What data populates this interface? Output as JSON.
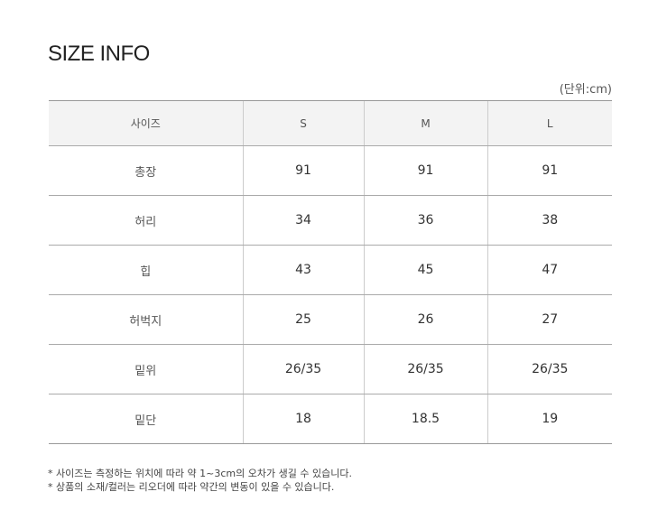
{
  "title": "SIZE INFO",
  "unit": "(단위:cm)",
  "table": {
    "headers": [
      "사이즈",
      "S",
      "M",
      "L"
    ],
    "rows": [
      [
        "총장",
        "91",
        "91",
        "91"
      ],
      [
        "허리",
        "34",
        "36",
        "38"
      ],
      [
        "힙",
        "43",
        "45",
        "47"
      ],
      [
        "허벅지",
        "25",
        "26",
        "27"
      ],
      [
        "밑위",
        "26/35",
        "26/35",
        "26/35"
      ],
      [
        "밑단",
        "18",
        "18.5",
        "19"
      ]
    ]
  },
  "notes": [
    "* 사이즈는 측정하는 위치에 따라 약 1~3cm의 오차가 생길 수 있습니다.",
    "* 상품의 소재/컬러는 리오더에 따라 약간의 변동이 있을 수 있습니다."
  ]
}
